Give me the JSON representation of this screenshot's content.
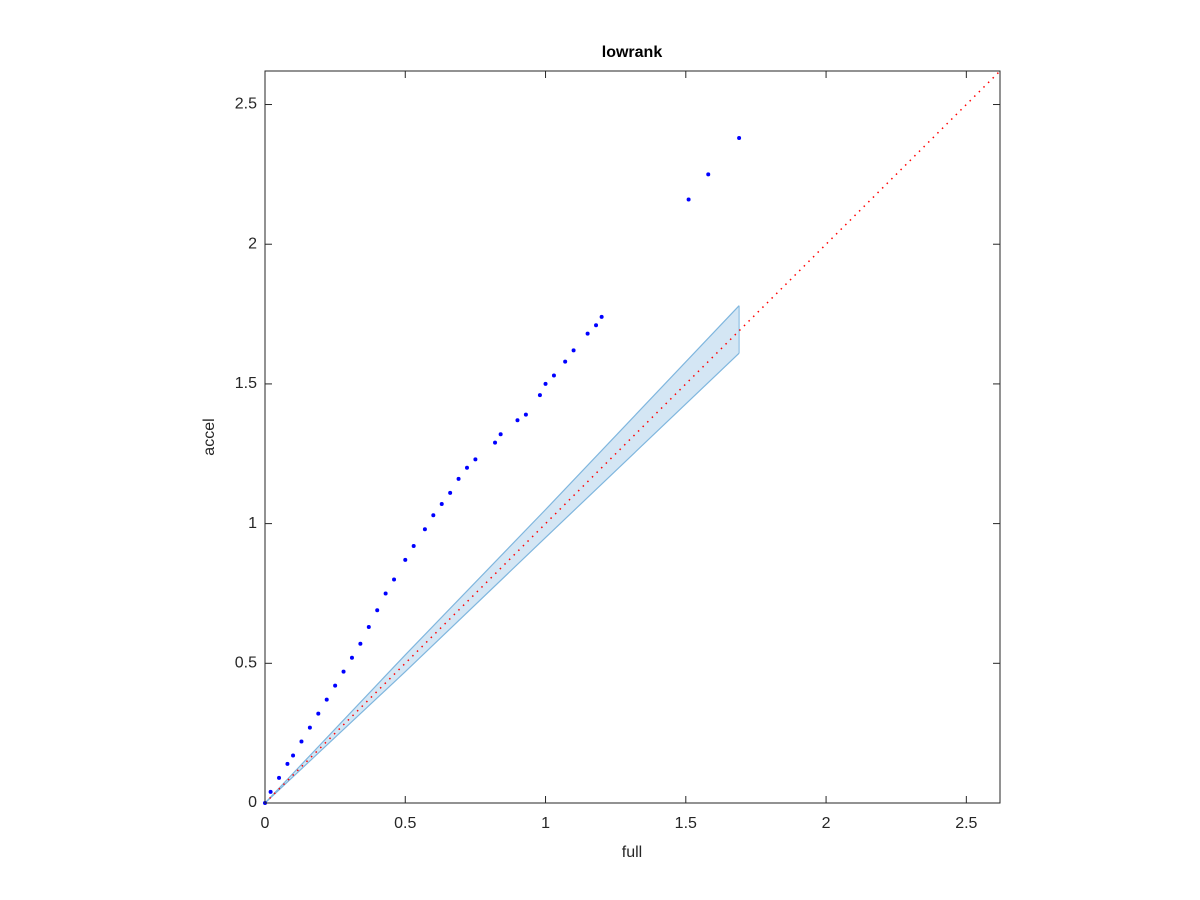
{
  "chart_data": {
    "type": "scatter",
    "title": "lowrank",
    "x_label": "full",
    "y_label": "accel",
    "xlim": [
      0,
      2.62
    ],
    "ylim": [
      0,
      2.62
    ],
    "xticks": [
      0,
      0.5,
      1,
      1.5,
      2,
      2.5
    ],
    "yticks": [
      0,
      0.5,
      1,
      1.5,
      2,
      2.5
    ],
    "series": [
      {
        "color": "#0000ff",
        "x": [
          0,
          0.02,
          0.05,
          0.08,
          0.1,
          0.13,
          0.16,
          0.19,
          0.22,
          0.25,
          0.28,
          0.31,
          0.34,
          0.37,
          0.4,
          0.43,
          0.46,
          0.5,
          0.53,
          0.57,
          0.6,
          0.63,
          0.66,
          0.69,
          0.72,
          0.75,
          0.82,
          0.84,
          0.9,
          0.93,
          0.98,
          1.0,
          1.03,
          1.07,
          1.1,
          1.15,
          1.18,
          1.2,
          1.51,
          1.58,
          1.69
        ],
        "values": [
          0,
          0.04,
          0.09,
          0.14,
          0.17,
          0.22,
          0.27,
          0.32,
          0.37,
          0.42,
          0.47,
          0.52,
          0.57,
          0.63,
          0.69,
          0.75,
          0.8,
          0.87,
          0.92,
          0.98,
          1.03,
          1.07,
          1.11,
          1.16,
          1.2,
          1.23,
          1.29,
          1.32,
          1.37,
          1.39,
          1.46,
          1.5,
          1.53,
          1.58,
          1.62,
          1.68,
          1.71,
          1.74,
          2.16,
          2.25,
          2.38
        ]
      }
    ],
    "band": {
      "color": "#7fb6de",
      "fill": "#d4e6f4",
      "x": [
        0,
        0.5,
        1,
        1.69
      ],
      "lower": [
        0,
        0.47,
        0.95,
        1.61
      ],
      "upper": [
        0,
        0.53,
        1.05,
        1.78
      ]
    },
    "reference_line": {
      "color": "#ff0000",
      "x": [
        0,
        2.62
      ],
      "values": [
        0,
        2.62
      ]
    }
  }
}
